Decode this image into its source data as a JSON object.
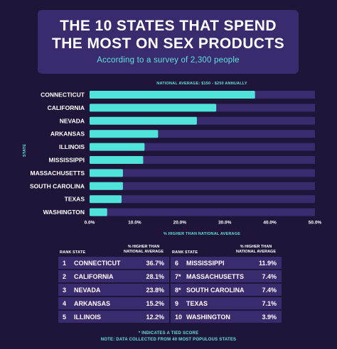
{
  "header": {
    "title_line1": "THE 10 STATES THAT SPEND",
    "title_line2": "THE MOST ON SEX PRODUCTS",
    "subtitle": "According to a survey of 2,300 people"
  },
  "chart_data": {
    "type": "bar",
    "orientation": "horizontal",
    "categories": [
      "CONNECTICUT",
      "CALIFORNIA",
      "NEVADA",
      "ARKANSAS",
      "ILLINOIS",
      "MISSISSIPPI",
      "MASSACHUSETTS",
      "SOUTH CAROLINA",
      "TEXAS",
      "WASHINGTON"
    ],
    "values": [
      36.7,
      28.1,
      23.8,
      15.2,
      12.2,
      11.9,
      7.4,
      7.4,
      7.1,
      3.9
    ],
    "xlim": [
      0,
      50
    ],
    "x_ticks": [
      "0.0%",
      "10.0%",
      "20.0%",
      "30.0%",
      "40.0%",
      "50.0%"
    ],
    "xlabel": "% HIGHER THAN NATIONAL AVERAGE",
    "ylabel": "STATE",
    "annotation": "NATIONAL AVERAGE: $150 - $250 ANNUALLY",
    "colors": {
      "bar": "#4fe3d9",
      "track": "#3a2a6e"
    }
  },
  "table": {
    "header_rank": "RANK",
    "header_state": "STATE",
    "header_pct_line1": "% HIGHER THAN",
    "header_pct_line2": "NATIONAL AVERAGE",
    "left": [
      {
        "rank": "1",
        "state": "CONNECTICUT",
        "value": "36.7%"
      },
      {
        "rank": "2",
        "state": "CALIFORNIA",
        "value": "28.1%"
      },
      {
        "rank": "3",
        "state": "NEVADA",
        "value": "23.8%"
      },
      {
        "rank": "4",
        "state": "ARKANSAS",
        "value": "15.2%"
      },
      {
        "rank": "5",
        "state": "ILLINOIS",
        "value": "12.2%"
      }
    ],
    "right": [
      {
        "rank": "6",
        "state": "MISSISSIPPI",
        "value": "11.9%"
      },
      {
        "rank": "7*",
        "state": "MASSACHUSETTS",
        "value": "7.4%"
      },
      {
        "rank": "8*",
        "state": "SOUTH CAROLINA",
        "value": "7.4%"
      },
      {
        "rank": "9",
        "state": "TEXAS",
        "value": "7.1%"
      },
      {
        "rank": "10",
        "state": "WASHINGTON",
        "value": "3.9%"
      }
    ]
  },
  "footnotes": {
    "line1": "* INDICATES A TIED SCORE",
    "line2": "NOTE: DATA COLLECTED FROM 40 MOST POPULOUS STATES"
  }
}
